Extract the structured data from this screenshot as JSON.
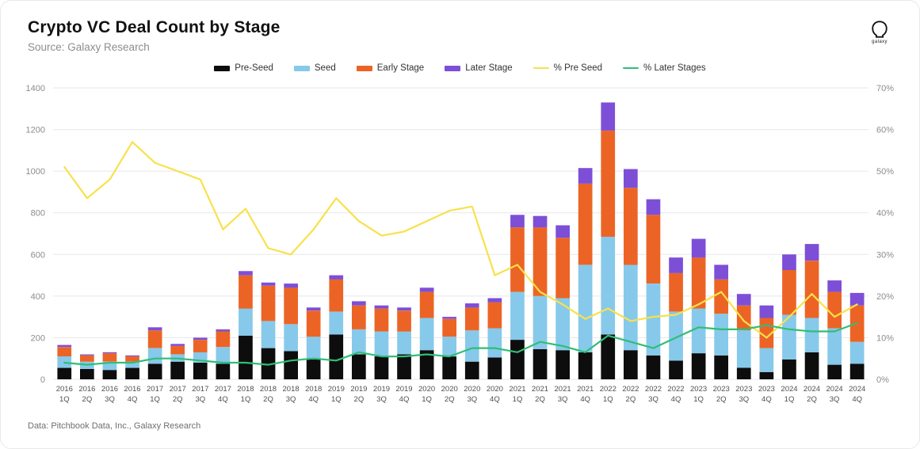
{
  "header": {
    "title": "Crypto VC Deal Count by Stage",
    "source": "Source: Galaxy Research",
    "logo_text": "galaxy"
  },
  "footer": {
    "note": "Data: Pitchbook Data, Inc., Galaxy Research"
  },
  "chart_data": {
    "type": "bar",
    "stacked": true,
    "title": "Crypto VC Deal Count by Stage",
    "grid": true,
    "legend_position": "top",
    "categories": [
      "2016 1Q",
      "2016 2Q",
      "2016 3Q",
      "2016 4Q",
      "2017 1Q",
      "2017 2Q",
      "2017 3Q",
      "2017 4Q",
      "2018 1Q",
      "2018 2Q",
      "2018 3Q",
      "2018 4Q",
      "2019 1Q",
      "2019 2Q",
      "2019 3Q",
      "2019 4Q",
      "2020 1Q",
      "2020 2Q",
      "2020 3Q",
      "2020 4Q",
      "2021 1Q",
      "2021 2Q",
      "2021 3Q",
      "2021 4Q",
      "2022 1Q",
      "2022 2Q",
      "2022 3Q",
      "2022 4Q",
      "2023 1Q",
      "2023 2Q",
      "2023 3Q",
      "2023 4Q",
      "2024 1Q",
      "2024 2Q",
      "2024 3Q",
      "2024 4Q"
    ],
    "left_axis": {
      "min": 0,
      "max": 1400,
      "tick_values": [
        0,
        200,
        400,
        600,
        800,
        1000,
        1200,
        1400
      ],
      "tick_labels": [
        "0",
        "200",
        "400",
        "600",
        "800",
        "1000",
        "1200",
        "1400"
      ]
    },
    "right_axis": {
      "min": 0,
      "max": 70,
      "tick_values": [
        0,
        10,
        20,
        30,
        40,
        50,
        60,
        70
      ],
      "tick_labels": [
        "0%",
        "10%",
        "20%",
        "30%",
        "40%",
        "50%",
        "60%",
        "70%"
      ]
    },
    "series": [
      {
        "name": "Pre-Seed",
        "type": "bar",
        "axis": "left",
        "color": "#0d0d0d",
        "values": [
          55,
          50,
          45,
          55,
          75,
          85,
          80,
          75,
          210,
          150,
          135,
          95,
          215,
          120,
          110,
          120,
          140,
          110,
          85,
          105,
          190,
          145,
          140,
          130,
          215,
          140,
          115,
          90,
          125,
          115,
          55,
          35,
          95,
          130,
          70,
          75
        ]
      },
      {
        "name": "Seed",
        "type": "bar",
        "axis": "left",
        "color": "#87c9ea",
        "values": [
          55,
          35,
          40,
          30,
          75,
          35,
          50,
          80,
          130,
          130,
          130,
          110,
          110,
          120,
          120,
          110,
          155,
          95,
          150,
          140,
          230,
          255,
          250,
          420,
          470,
          410,
          345,
          235,
          215,
          200,
          180,
          115,
          215,
          165,
          175,
          105
        ]
      },
      {
        "name": "Early Stage",
        "type": "bar",
        "axis": "left",
        "color": "#ec6425",
        "values": [
          45,
          30,
          40,
          25,
          85,
          40,
          60,
          75,
          160,
          170,
          175,
          125,
          155,
          115,
          110,
          100,
          125,
          85,
          110,
          125,
          310,
          330,
          290,
          390,
          510,
          370,
          330,
          185,
          245,
          165,
          120,
          145,
          215,
          275,
          175,
          175
        ]
      },
      {
        "name": "Later Stage",
        "type": "bar",
        "axis": "left",
        "color": "#7d4fd7",
        "values": [
          10,
          5,
          5,
          5,
          15,
          10,
          10,
          10,
          20,
          15,
          20,
          15,
          20,
          20,
          15,
          15,
          20,
          10,
          20,
          20,
          60,
          55,
          60,
          75,
          135,
          90,
          75,
          75,
          90,
          70,
          55,
          60,
          75,
          80,
          55,
          60
        ]
      },
      {
        "name": "% Pre Seed",
        "type": "line",
        "axis": "right",
        "color": "#f8e14b",
        "values": [
          51,
          43.5,
          48,
          57,
          52,
          50,
          48,
          36,
          41,
          31.5,
          30,
          36,
          43.5,
          38,
          34.5,
          35.5,
          38,
          40.5,
          41.5,
          25,
          27.5,
          21,
          18,
          14.5,
          17,
          14,
          15,
          15.5,
          18,
          21,
          14,
          10,
          15,
          20.5,
          15,
          18
        ]
      },
      {
        "name": "% Later Stages",
        "type": "line",
        "axis": "right",
        "color": "#2fbe77",
        "values": [
          4,
          3.5,
          4,
          4,
          5,
          5,
          4.5,
          4,
          4,
          3.5,
          4.5,
          5,
          4.5,
          6.5,
          5.5,
          5.5,
          6,
          5.5,
          7.5,
          7.5,
          6.5,
          9,
          8,
          6.5,
          10.5,
          9,
          7.5,
          10,
          12.5,
          12,
          12,
          13,
          12,
          11.5,
          11.5,
          13.5
        ]
      }
    ]
  }
}
